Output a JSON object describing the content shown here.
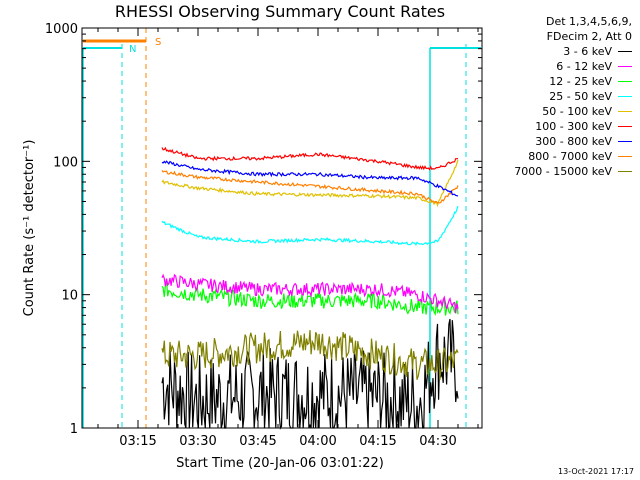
{
  "chart_data": {
    "type": "line",
    "title": "RHESSI Observing Summary Count Rates",
    "xlabel": "Start Time (20-Jan-06 03:01:22)",
    "ylabel": "Count Rate (s⁻¹ detector⁻¹)",
    "yscale": "log",
    "ylim": [
      1,
      1000
    ],
    "xlim": [
      "03:01",
      "04:41"
    ],
    "x_ticks": [
      "03:15",
      "03:30",
      "03:45",
      "04:00",
      "04:15",
      "04:30"
    ],
    "y_ticks": [
      "1",
      "10",
      "100",
      "1000"
    ],
    "legend_title": [
      "Det 1,3,4,5,6,9,",
      "FDecim 2, Att 0"
    ],
    "legend_position": "right",
    "markers": [
      {
        "label": "N",
        "time": "03:12",
        "color": "#00e0e0"
      },
      {
        "label": "S",
        "time": "03:18",
        "color": "#ff8000"
      }
    ],
    "series": [
      {
        "name": "3 - 6 keV",
        "color": "#000000"
      },
      {
        "name": "6 - 12 keV",
        "color": "#ff00ff"
      },
      {
        "name": "12 - 25 keV",
        "color": "#00ff00"
      },
      {
        "name": "25 - 50 keV",
        "color": "#00ffff"
      },
      {
        "name": "50 - 100 keV",
        "color": "#e0c000"
      },
      {
        "name": "100 - 300 keV",
        "color": "#ff0000"
      },
      {
        "name": "300 - 800 keV",
        "color": "#0000ff"
      },
      {
        "name": "800 - 7000 keV",
        "color": "#ff8000"
      },
      {
        "name": "7000 - 15000 keV",
        "color": "#808000"
      }
    ],
    "x": [
      "03:21",
      "03:30",
      "03:45",
      "04:00",
      "04:15",
      "04:25",
      "04:30",
      "04:35"
    ],
    "values": {
      "100 - 300 keV": [
        125,
        105,
        105,
        113,
        100,
        90,
        88,
        105
      ],
      "300 - 800 keV": [
        100,
        87,
        80,
        80,
        75,
        75,
        65,
        55
      ],
      "800 - 7000 keV": [
        84,
        76,
        70,
        65,
        60,
        57,
        48,
        65
      ],
      "50 - 100 keV": [
        70,
        63,
        57,
        56,
        55,
        53,
        48,
        100
      ],
      "25 - 50 keV": [
        35,
        27,
        25,
        26,
        25,
        24,
        25,
        45
      ],
      "6 - 12 keV": [
        13,
        12,
        11,
        11,
        11,
        10,
        9,
        8
      ],
      "12 - 25 keV": [
        11,
        10,
        9,
        9,
        9,
        8,
        8,
        8
      ],
      "7000 - 15000 keV": [
        3.5,
        3.5,
        4,
        4.5,
        3.5,
        3,
        3,
        3.2
      ],
      "3 - 6 keV": [
        2.2,
        1.6,
        1.8,
        1.8,
        1.7,
        1.5,
        3.5,
        3
      ]
    }
  },
  "footer": "13-Oct-2021 17:17"
}
